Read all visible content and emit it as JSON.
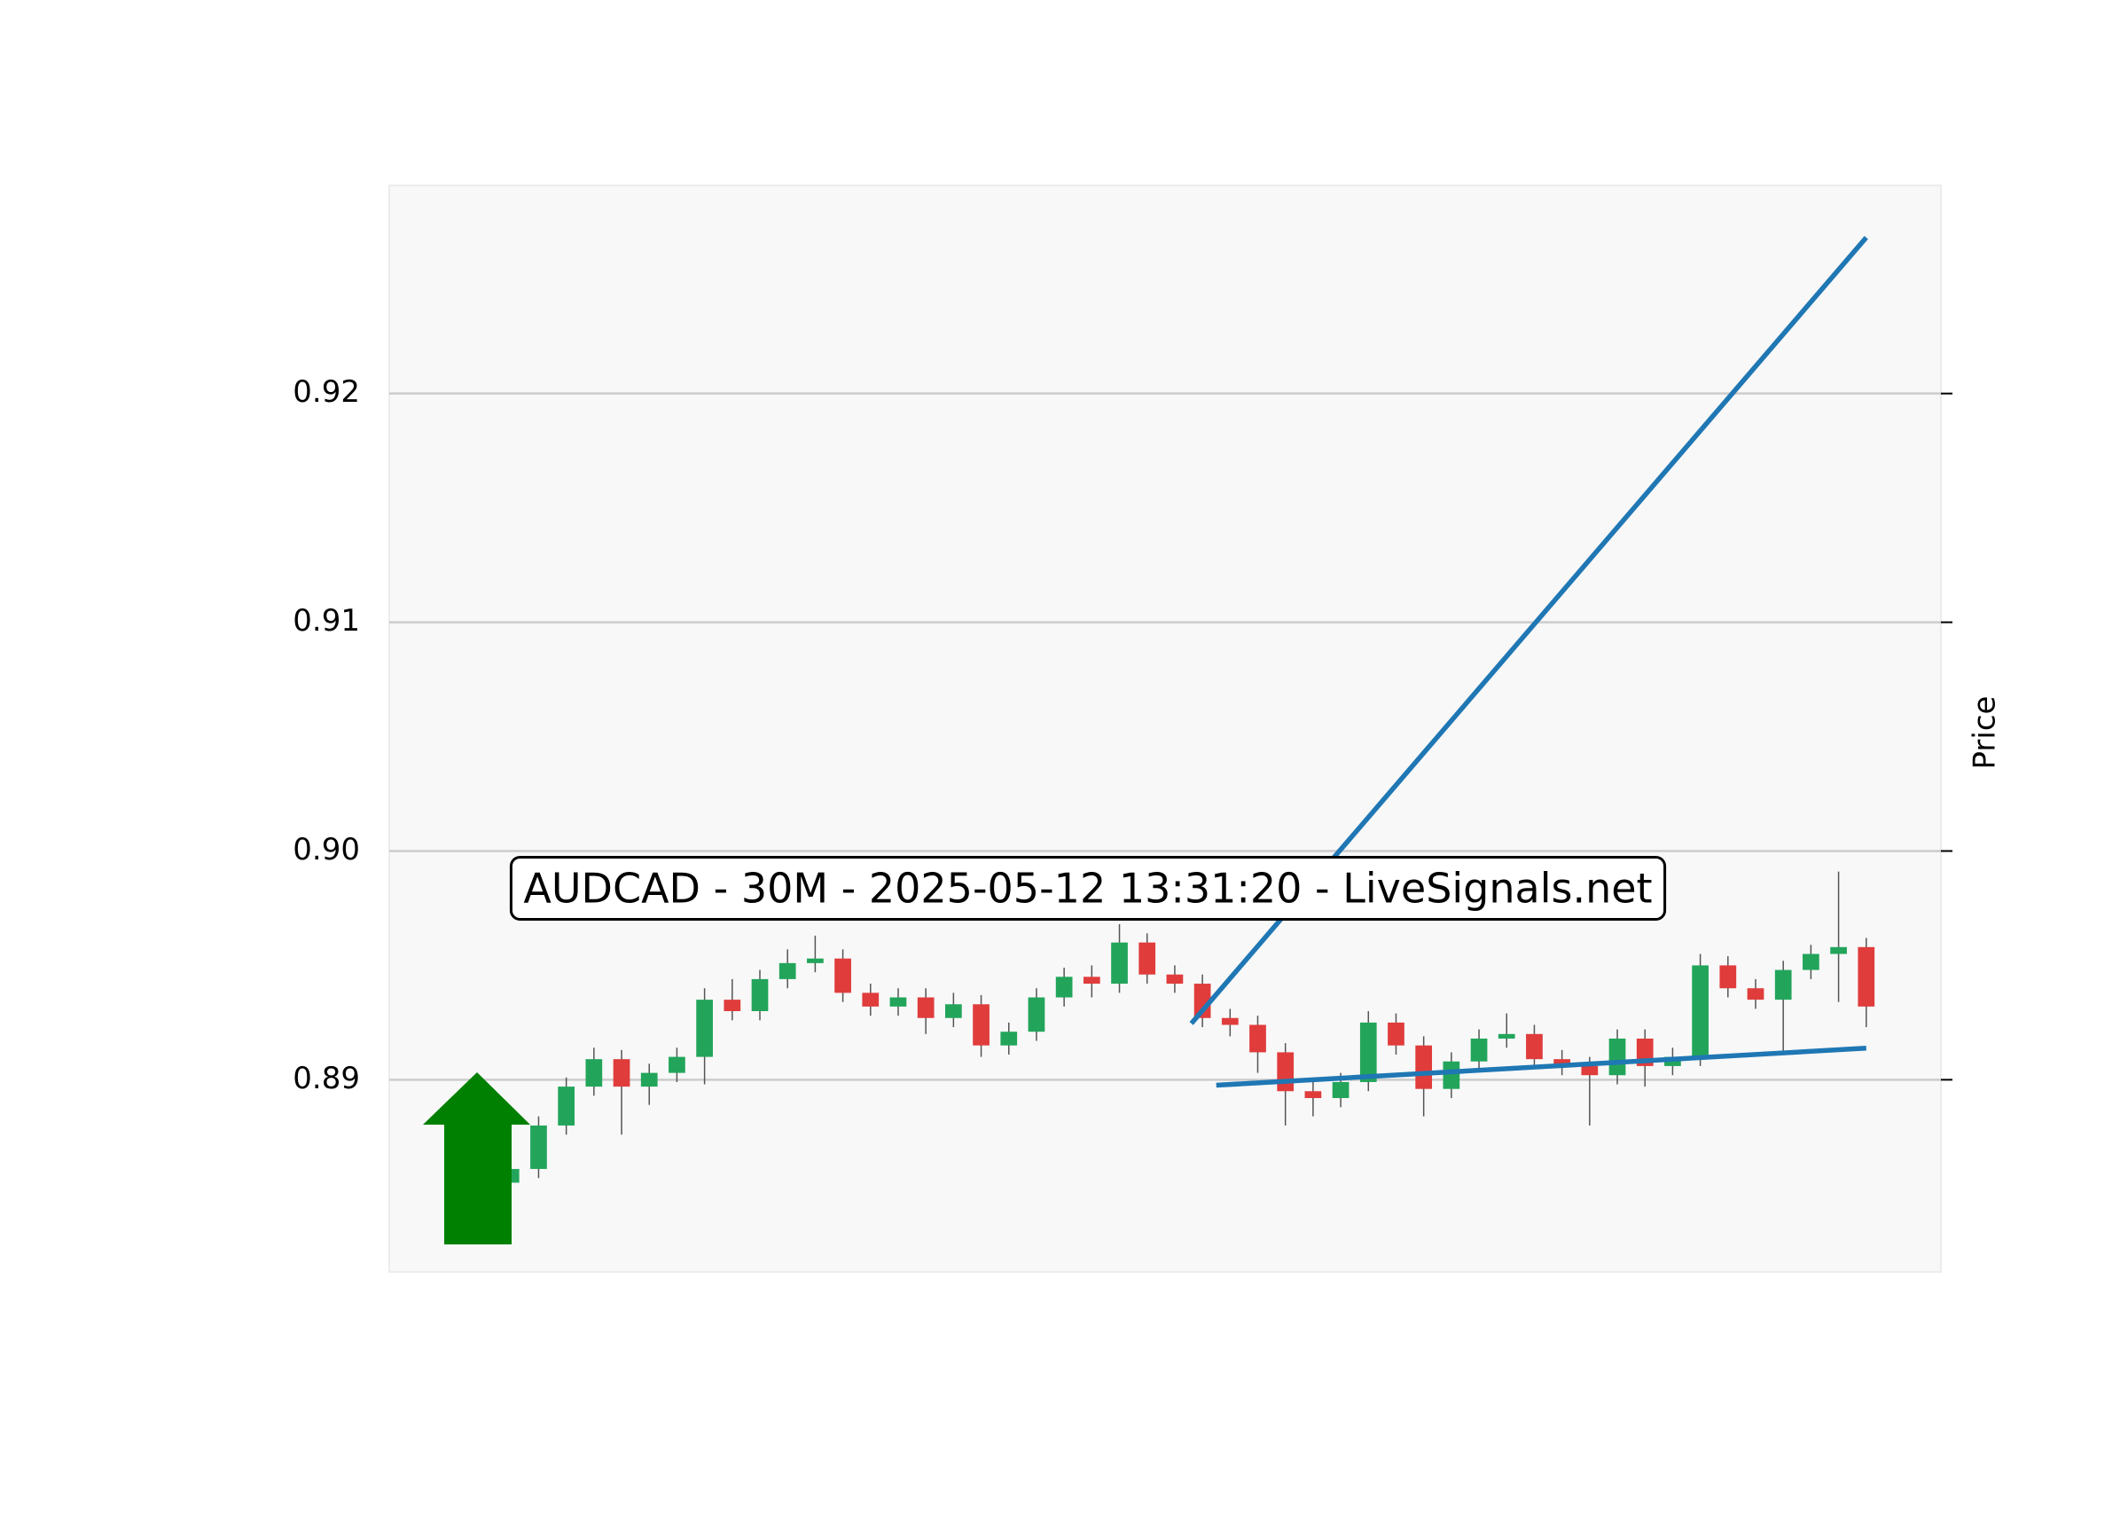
{
  "chart_data": {
    "type": "candlestick",
    "annotation": "AUDCAD - 30M - 2025-05-12 13:31:20 - LiveSignals.net",
    "y_label": "Price",
    "ylim": [
      0.8816,
      0.9291
    ],
    "yticks": [
      {
        "value": 0.89,
        "label": "0.89"
      },
      {
        "value": 0.9,
        "label": "0.90"
      },
      {
        "value": 0.91,
        "label": "0.91"
      },
      {
        "value": 0.92,
        "label": "0.92"
      }
    ],
    "xlim": [
      -4.4,
      51.7
    ],
    "grid": true,
    "up_color": "#22a55b",
    "down_color": "#e03c3c",
    "wick_color": "#555555",
    "x": [
      0,
      1,
      2,
      3,
      4,
      5,
      6,
      7,
      8,
      9,
      10,
      11,
      12,
      13,
      14,
      15,
      16,
      17,
      18,
      19,
      20,
      21,
      22,
      23,
      24,
      25,
      26,
      27,
      28,
      29,
      30,
      31,
      32,
      33,
      34,
      35,
      36,
      37,
      38,
      39,
      40,
      41,
      42,
      43,
      44,
      45,
      46,
      47,
      48,
      49
    ],
    "open": [
      0.8855,
      0.8861,
      0.888,
      0.8897,
      0.8909,
      0.8897,
      0.8903,
      0.891,
      0.8935,
      0.893,
      0.8944,
      0.8951,
      0.8953,
      0.8938,
      0.8932,
      0.8936,
      0.8927,
      0.8933,
      0.8915,
      0.8921,
      0.8936,
      0.8945,
      0.8942,
      0.896,
      0.8946,
      0.8942,
      0.8927,
      0.8924,
      0.8912,
      0.8895,
      0.8892,
      0.8899,
      0.8925,
      0.8915,
      0.8896,
      0.8908,
      0.8918,
      0.892,
      0.8909,
      0.8906,
      0.8902,
      0.8918,
      0.8906,
      0.891,
      0.895,
      0.894,
      0.8935,
      0.8948,
      0.8955,
      0.8958
    ],
    "high": [
      0.8866,
      0.8884,
      0.8901,
      0.8914,
      0.8913,
      0.8907,
      0.8914,
      0.894,
      0.8944,
      0.8948,
      0.8957,
      0.8963,
      0.8957,
      0.8942,
      0.894,
      0.894,
      0.8938,
      0.8937,
      0.8925,
      0.894,
      0.8949,
      0.895,
      0.8968,
      0.8964,
      0.895,
      0.8946,
      0.8931,
      0.8928,
      0.8916,
      0.8899,
      0.8903,
      0.893,
      0.8929,
      0.8919,
      0.8912,
      0.8922,
      0.8929,
      0.8924,
      0.8913,
      0.891,
      0.8922,
      0.8922,
      0.8914,
      0.8955,
      0.8954,
      0.8944,
      0.8952,
      0.8959,
      0.8991,
      0.8962
    ],
    "low": [
      0.8851,
      0.8857,
      0.8876,
      0.8893,
      0.8876,
      0.8889,
      0.8899,
      0.8898,
      0.8926,
      0.8926,
      0.894,
      0.8947,
      0.8934,
      0.8928,
      0.8928,
      0.892,
      0.8923,
      0.891,
      0.8911,
      0.8917,
      0.8932,
      0.8936,
      0.8938,
      0.8942,
      0.8938,
      0.8923,
      0.8919,
      0.8903,
      0.888,
      0.8884,
      0.8888,
      0.8895,
      0.8911,
      0.8884,
      0.8892,
      0.8904,
      0.8914,
      0.8905,
      0.8902,
      0.888,
      0.8898,
      0.8897,
      0.8902,
      0.8906,
      0.8936,
      0.8931,
      0.8912,
      0.8944,
      0.8934,
      0.8923
    ],
    "close": [
      0.8861,
      0.888,
      0.8897,
      0.8909,
      0.8897,
      0.8903,
      0.891,
      0.8935,
      0.893,
      0.8944,
      0.8951,
      0.8953,
      0.8938,
      0.8932,
      0.8936,
      0.8927,
      0.8933,
      0.8915,
      0.8921,
      0.8936,
      0.8945,
      0.8942,
      0.896,
      0.8946,
      0.8942,
      0.8927,
      0.8924,
      0.8912,
      0.8895,
      0.8892,
      0.8899,
      0.8925,
      0.8915,
      0.8896,
      0.8908,
      0.8918,
      0.892,
      0.8909,
      0.8906,
      0.8902,
      0.8918,
      0.8906,
      0.891,
      0.895,
      0.894,
      0.8935,
      0.8948,
      0.8955,
      0.8958,
      0.8932
    ],
    "trendlines": [
      {
        "color": "#1f77b4",
        "x": [
          24.6,
          49
        ],
        "values": [
          0.89246,
          0.92682
        ]
      },
      {
        "color": "#1f77b4",
        "x": [
          25.5,
          49
        ],
        "values": [
          0.88976,
          0.89138
        ]
      }
    ],
    "signal_color": "#008000"
  }
}
